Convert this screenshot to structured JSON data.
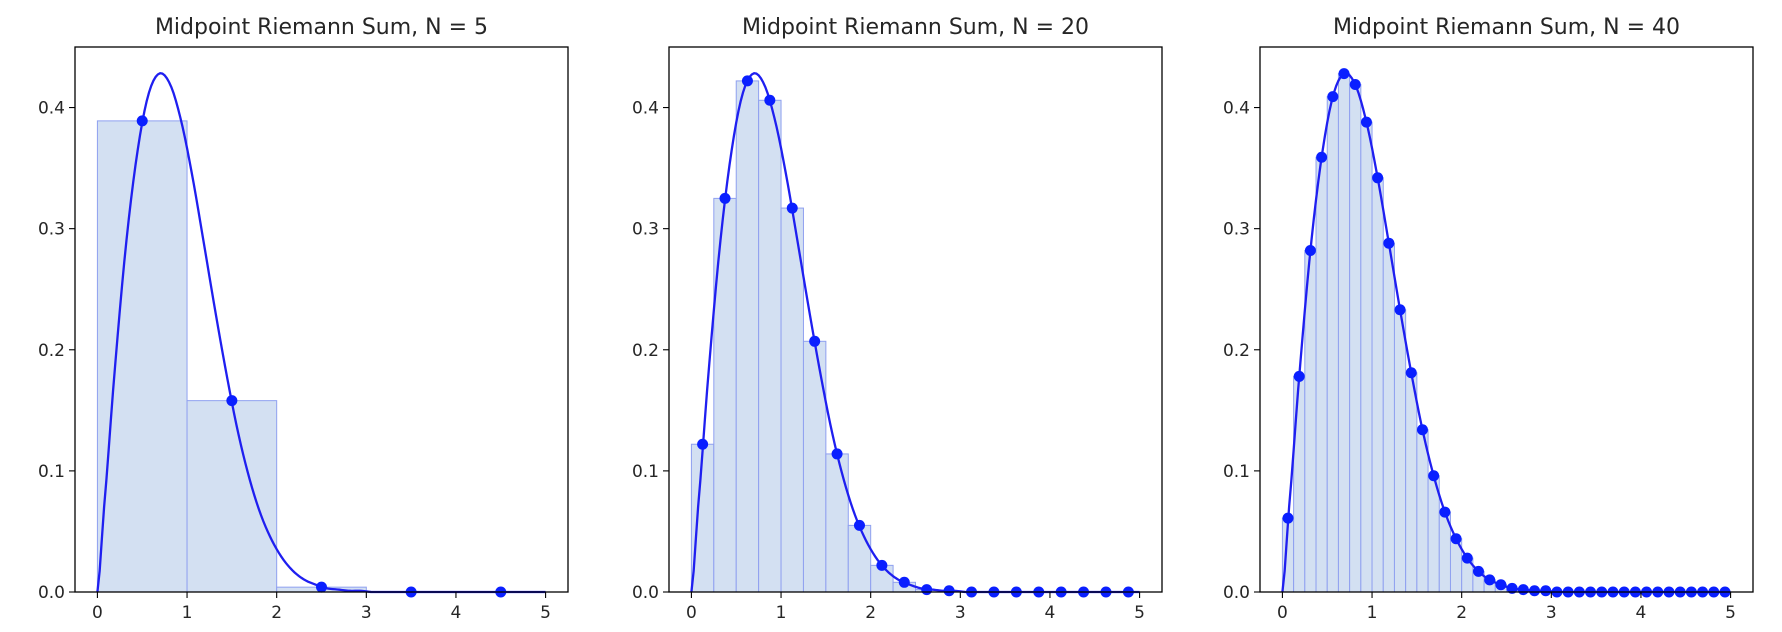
{
  "colors": {
    "curve": "#1f1ff0",
    "point": "#0a1fff",
    "bar_fill": "#d3e0f2",
    "bar_edge": "#8fa0f0",
    "axes": "#000000",
    "text": "#262626"
  },
  "chart_data": [
    {
      "type": "bar",
      "title": "Midpoint Riemann Sum, N = 5",
      "xlim": [
        -0.25,
        5.25
      ],
      "ylim": [
        0,
        0.45
      ],
      "xticks": [
        0,
        1,
        2,
        3,
        4,
        5
      ],
      "xtick_labels": [
        "0",
        "1",
        "2",
        "3",
        "4",
        "5"
      ],
      "yticks": [
        0,
        0.1,
        0.2,
        0.3,
        0.4
      ],
      "ytick_labels": [
        "0.0",
        "0.1",
        "0.2",
        "0.3",
        "0.4"
      ],
      "interval": [
        0,
        5
      ],
      "n": 5,
      "midpoints": [
        0.5,
        1.5,
        2.5,
        3.5,
        4.5
      ],
      "values": [
        0.389,
        0.158,
        0.004,
        0.0,
        0.0
      ],
      "grid": false
    },
    {
      "type": "bar",
      "title": "Midpoint Riemann Sum, N = 20",
      "xlim": [
        -0.25,
        5.25
      ],
      "ylim": [
        0,
        0.45
      ],
      "xticks": [
        0,
        1,
        2,
        3,
        4,
        5
      ],
      "xtick_labels": [
        "0",
        "1",
        "2",
        "3",
        "4",
        "5"
      ],
      "yticks": [
        0,
        0.1,
        0.2,
        0.3,
        0.4
      ],
      "ytick_labels": [
        "0.0",
        "0.1",
        "0.2",
        "0.3",
        "0.4"
      ],
      "interval": [
        0,
        5
      ],
      "n": 20,
      "midpoints": [
        0.125,
        0.375,
        0.625,
        0.875,
        1.125,
        1.375,
        1.625,
        1.875,
        2.125,
        2.375,
        2.625,
        2.875,
        3.125,
        3.375,
        3.625,
        3.875,
        4.125,
        4.375,
        4.625,
        4.875
      ],
      "values": [
        0.122,
        0.325,
        0.422,
        0.406,
        0.317,
        0.207,
        0.114,
        0.055,
        0.022,
        0.008,
        0.002,
        0.001,
        0.0,
        0.0,
        0.0,
        0.0,
        0.0,
        0.0,
        0.0,
        0.0
      ],
      "grid": false
    },
    {
      "type": "bar",
      "title": "Midpoint Riemann Sum, N = 40",
      "xlim": [
        -0.25,
        5.25
      ],
      "ylim": [
        0,
        0.45
      ],
      "xticks": [
        0,
        1,
        2,
        3,
        4,
        5
      ],
      "xtick_labels": [
        "0",
        "1",
        "2",
        "3",
        "4",
        "5"
      ],
      "yticks": [
        0,
        0.1,
        0.2,
        0.3,
        0.4
      ],
      "ytick_labels": [
        "0.0",
        "0.1",
        "0.2",
        "0.3",
        "0.4"
      ],
      "interval": [
        0,
        5
      ],
      "n": 40,
      "midpoints": [
        0.0625,
        0.1875,
        0.3125,
        0.4375,
        0.5625,
        0.6875,
        0.8125,
        0.9375,
        1.0625,
        1.1875,
        1.3125,
        1.4375,
        1.5625,
        1.6875,
        1.8125,
        1.9375,
        2.0625,
        2.1875,
        2.3125,
        2.4375,
        2.5625,
        2.6875,
        2.8125,
        2.9375,
        3.0625,
        3.1875,
        3.3125,
        3.4375,
        3.5625,
        3.6875,
        3.8125,
        3.9375,
        4.0625,
        4.1875,
        4.3125,
        4.4375,
        4.5625,
        4.6875,
        4.8125,
        4.9375
      ],
      "values": [
        0.061,
        0.178,
        0.282,
        0.359,
        0.409,
        0.428,
        0.419,
        0.388,
        0.342,
        0.288,
        0.233,
        0.181,
        0.134,
        0.096,
        0.066,
        0.044,
        0.028,
        0.017,
        0.01,
        0.006,
        0.003,
        0.002,
        0.001,
        0.001,
        0.0,
        0.0,
        0.0,
        0.0,
        0.0,
        0.0,
        0.0,
        0.0,
        0.0,
        0.0,
        0.0,
        0.0,
        0.0,
        0.0,
        0.0,
        0.0
      ],
      "grid": false
    }
  ]
}
